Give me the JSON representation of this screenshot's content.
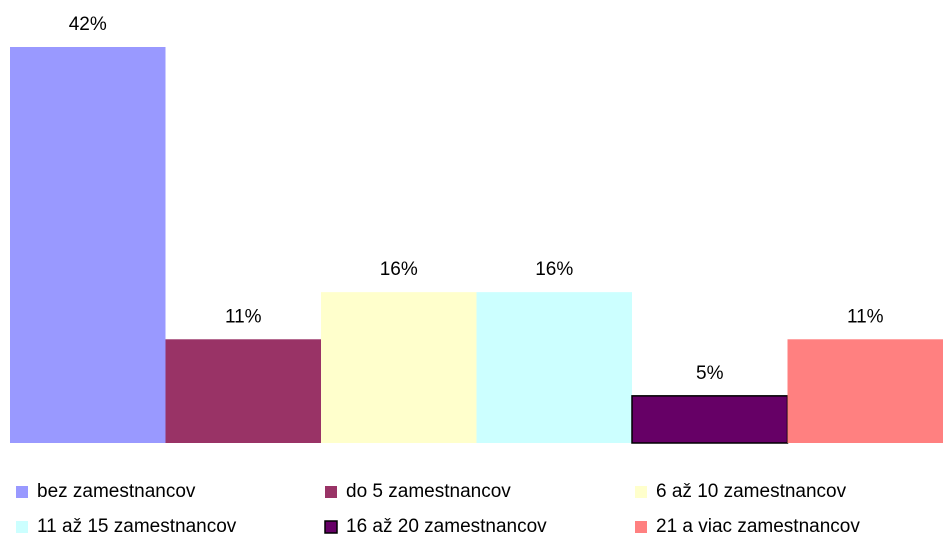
{
  "chart_data": {
    "type": "bar",
    "series": [
      {
        "name": "bez zamestnancov",
        "color": "#9999ff",
        "values": [
          42
        ],
        "value_labels": [
          "42%"
        ]
      },
      {
        "name": "do 5 zamestnancov",
        "color": "#993366",
        "values": [
          11
        ],
        "value_labels": [
          "11%"
        ]
      },
      {
        "name": "6 až 10 zamestnancov",
        "color": "#ffffcc",
        "values": [
          16
        ],
        "value_labels": [
          "16%"
        ]
      },
      {
        "name": "11 až 15 zamestnancov",
        "color": "#ccffff",
        "values": [
          16
        ],
        "value_labels": [
          "16%"
        ]
      },
      {
        "name": "16 až 20 zamestnancov",
        "color": "#660066",
        "edgecolor": "#000000",
        "values": [
          5
        ],
        "value_labels": [
          "5%"
        ]
      },
      {
        "name": "21 a viac zamestnancov",
        "color": "#ff8080",
        "values": [
          11
        ],
        "value_labels": [
          "11%"
        ]
      }
    ],
    "legend": "bottom"
  }
}
